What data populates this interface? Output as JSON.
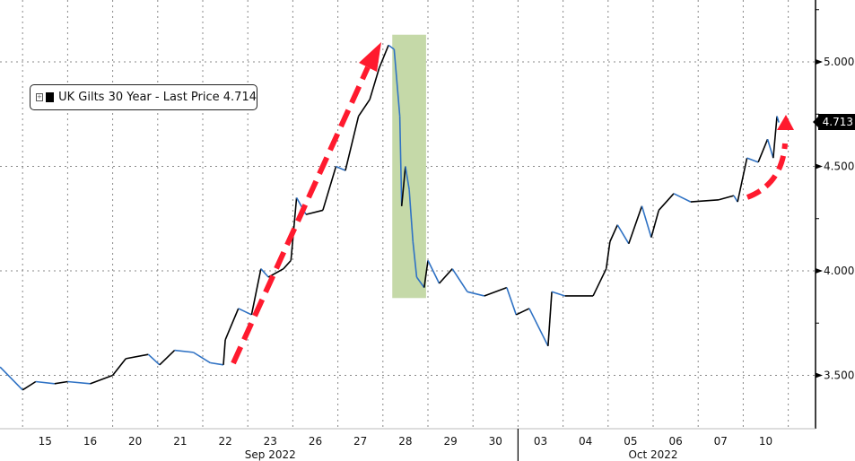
{
  "chart_data": {
    "type": "line",
    "title": "",
    "legend": {
      "label": "UK Gilts 30 Year - Last Price 4.714",
      "placement": "top-left",
      "swatch_color": "#000000"
    },
    "last_price_tag": "4.713",
    "ylim": [
      3.24,
      5.26
    ],
    "y_ticks": [
      {
        "value": 5.0,
        "label": "5.000"
      },
      {
        "value": 4.5,
        "label": "4.500"
      },
      {
        "value": 4.0,
        "label": "4.000"
      },
      {
        "value": 3.5,
        "label": "3.500"
      }
    ],
    "y_minor_ticks": [
      5.25,
      4.75,
      4.25,
      3.75
    ],
    "trading_days": [
      "2022-09-14",
      "2022-09-15",
      "2022-09-16",
      "2022-09-20",
      "2022-09-21",
      "2022-09-22",
      "2022-09-23",
      "2022-09-26",
      "2022-09-27",
      "2022-09-28",
      "2022-09-29",
      "2022-09-30",
      "2022-10-03",
      "2022-10-04",
      "2022-10-05",
      "2022-10-06",
      "2022-10-07",
      "2022-10-10",
      "2022-10-11"
    ],
    "x_tick_labels": [
      {
        "day": "2022-09-15",
        "label": "15"
      },
      {
        "day": "2022-09-16",
        "label": "16"
      },
      {
        "day": "2022-09-20",
        "label": "20"
      },
      {
        "day": "2022-09-21",
        "label": "21"
      },
      {
        "day": "2022-09-22",
        "label": "22"
      },
      {
        "day": "2022-09-23",
        "label": "23"
      },
      {
        "day": "2022-09-26",
        "label": "26"
      },
      {
        "day": "2022-09-27",
        "label": "27"
      },
      {
        "day": "2022-09-28",
        "label": "28"
      },
      {
        "day": "2022-09-29",
        "label": "29"
      },
      {
        "day": "2022-09-30",
        "label": "30"
      },
      {
        "day": "2022-10-03",
        "label": "03"
      },
      {
        "day": "2022-10-04",
        "label": "04"
      },
      {
        "day": "2022-10-05",
        "label": "05"
      },
      {
        "day": "2022-10-06",
        "label": "06"
      },
      {
        "day": "2022-10-07",
        "label": "07"
      },
      {
        "day": "2022-10-10",
        "label": "10"
      }
    ],
    "month_labels": [
      {
        "label": "Sep 2022",
        "from": "2022-09-15",
        "to": "2022-09-30"
      },
      {
        "label": "Oct 2022",
        "from": "2022-10-03",
        "to": "2022-10-10"
      }
    ],
    "grid": true,
    "colors": {
      "up": "#000000",
      "down": "#2f72c4",
      "highlight": "#c5d9a8",
      "arrow": "#ff1a2e"
    },
    "highlight_region": {
      "from": "2022-09-28 05:00",
      "to": "2022-09-28 23:00",
      "y_from": 3.87,
      "y_to": 5.13
    },
    "series": [
      {
        "name": "UK Gilts 30 Year",
        "points": [
          [
            "2022-09-14 12:00",
            3.54
          ],
          [
            "2022-09-15 00:00",
            3.43
          ],
          [
            "2022-09-15 07:00",
            3.47
          ],
          [
            "2022-09-15 17:00",
            3.46
          ],
          [
            "2022-09-16 00:00",
            3.47
          ],
          [
            "2022-09-16 12:00",
            3.46
          ],
          [
            "2022-09-20 00:00",
            3.5
          ],
          [
            "2022-09-20 07:00",
            3.58
          ],
          [
            "2022-09-20 19:00",
            3.6
          ],
          [
            "2022-09-21 01:00",
            3.55
          ],
          [
            "2022-09-21 09:00",
            3.62
          ],
          [
            "2022-09-21 19:00",
            3.61
          ],
          [
            "2022-09-22 04:00",
            3.56
          ],
          [
            "2022-09-22 11:00",
            3.55
          ],
          [
            "2022-09-22 12:00",
            3.67
          ],
          [
            "2022-09-22 19:00",
            3.82
          ],
          [
            "2022-09-23 02:00",
            3.79
          ],
          [
            "2022-09-23 07:00",
            4.01
          ],
          [
            "2022-09-23 11:00",
            3.97
          ],
          [
            "2022-09-23 19:00",
            4.01
          ],
          [
            "2022-09-23 23:00",
            4.05
          ],
          [
            "2022-09-26 02:00",
            4.35
          ],
          [
            "2022-09-26 07:00",
            4.27
          ],
          [
            "2022-09-26 16:00",
            4.29
          ],
          [
            "2022-09-26 23:00",
            4.5
          ],
          [
            "2022-09-27 04:00",
            4.48
          ],
          [
            "2022-09-27 11:00",
            4.74
          ],
          [
            "2022-09-27 17:00",
            4.82
          ],
          [
            "2022-09-27 22:00",
            4.97
          ],
          [
            "2022-09-28 03:00",
            5.08
          ],
          [
            "2022-09-28 06:00",
            5.06
          ],
          [
            "2022-09-28 09:00",
            4.74
          ],
          [
            "2022-09-28 10:00",
            4.31
          ],
          [
            "2022-09-28 12:00",
            4.5
          ],
          [
            "2022-09-28 14:00",
            4.39
          ],
          [
            "2022-09-28 16:00",
            4.14
          ],
          [
            "2022-09-28 18:00",
            3.97
          ],
          [
            "2022-09-28 22:00",
            3.92
          ],
          [
            "2022-09-29 00:00",
            4.05
          ],
          [
            "2022-09-29 06:00",
            3.94
          ],
          [
            "2022-09-29 13:00",
            4.01
          ],
          [
            "2022-09-29 21:00",
            3.9
          ],
          [
            "2022-09-30 06:00",
            3.88
          ],
          [
            "2022-09-30 18:00",
            3.92
          ],
          [
            "2022-09-30 23:00",
            3.79
          ],
          [
            "2022-10-03 06:00",
            3.82
          ],
          [
            "2022-10-03 16:00",
            3.64
          ],
          [
            "2022-10-03 18:00",
            3.9
          ],
          [
            "2022-10-04 01:00",
            3.88
          ],
          [
            "2022-10-04 16:00",
            3.88
          ],
          [
            "2022-10-04 23:00",
            4.01
          ],
          [
            "2022-10-05 01:00",
            4.14
          ],
          [
            "2022-10-05 05:00",
            4.22
          ],
          [
            "2022-10-05 11:00",
            4.13
          ],
          [
            "2022-10-05 18:00",
            4.31
          ],
          [
            "2022-10-05 23:00",
            4.16
          ],
          [
            "2022-10-06 03:00",
            4.29
          ],
          [
            "2022-10-06 11:00",
            4.37
          ],
          [
            "2022-10-06 20:00",
            4.33
          ],
          [
            "2022-10-07 11:00",
            4.34
          ],
          [
            "2022-10-07 19:00",
            4.36
          ],
          [
            "2022-10-07 21:00",
            4.33
          ],
          [
            "2022-10-10 02:00",
            4.54
          ],
          [
            "2022-10-10 08:00",
            4.52
          ],
          [
            "2022-10-10 13:00",
            4.63
          ],
          [
            "2022-10-10 16:00",
            4.54
          ],
          [
            "2022-10-10 18:00",
            4.74
          ],
          [
            "2022-10-10 19:00",
            4.71
          ]
        ]
      }
    ]
  }
}
